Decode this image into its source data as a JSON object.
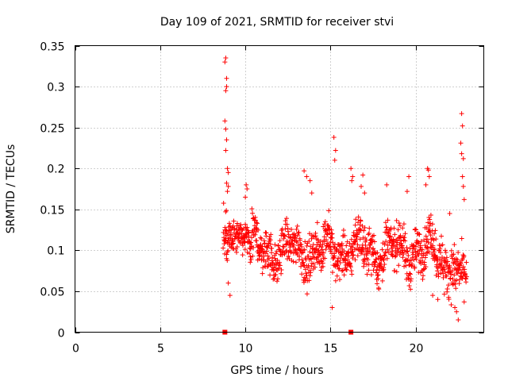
{
  "chart_data": {
    "type": "scatter",
    "title": "Day 109 of 2021, SRMTID for receiver stvi",
    "xlabel": "GPS time / hours",
    "ylabel": "SRMTID / TECUs",
    "xlim": [
      0,
      24
    ],
    "ylim": [
      0,
      0.35
    ],
    "xticks": [
      0,
      5,
      10,
      15,
      20
    ],
    "yticks": [
      0,
      0.05,
      0.1,
      0.15,
      0.2,
      0.25,
      0.3,
      0.35
    ],
    "xtick_labels": [
      "0",
      "5",
      "10",
      "15",
      "20"
    ],
    "ytick_labels": [
      "0",
      "0.05",
      "0.1",
      "0.15",
      "0.2",
      "0.25",
      "0.3",
      "0.35"
    ],
    "grid": true,
    "marker": "+",
    "color": "#ff0000",
    "data_range_hours": [
      8.7,
      23.0
    ],
    "series": [
      {
        "name": "SRMTID",
        "points": [
          [
            8.8,
            0.33
          ],
          [
            8.85,
            0.335
          ],
          [
            8.9,
            0.31
          ],
          [
            8.85,
            0.295
          ],
          [
            8.9,
            0.3
          ],
          [
            8.8,
            0.258
          ],
          [
            8.85,
            0.248
          ],
          [
            8.9,
            0.235
          ],
          [
            8.85,
            0.222
          ],
          [
            8.95,
            0.2
          ],
          [
            9.0,
            0.195
          ],
          [
            8.9,
            0.182
          ],
          [
            9.0,
            0.178
          ],
          [
            8.95,
            0.172
          ],
          [
            8.8,
            0.125
          ],
          [
            8.85,
            0.11
          ],
          [
            8.9,
            0.095
          ],
          [
            9.0,
            0.06
          ],
          [
            9.1,
            0.045
          ],
          [
            10.05,
            0.18
          ],
          [
            10.1,
            0.175
          ],
          [
            10.0,
            0.165
          ],
          [
            13.45,
            0.197
          ],
          [
            13.6,
            0.19
          ],
          [
            13.8,
            0.185
          ],
          [
            13.9,
            0.17
          ],
          [
            15.2,
            0.238
          ],
          [
            15.3,
            0.222
          ],
          [
            15.25,
            0.21
          ],
          [
            15.1,
            0.03
          ],
          [
            16.2,
            0.2
          ],
          [
            16.3,
            0.19
          ],
          [
            16.25,
            0.185
          ],
          [
            16.9,
            0.192
          ],
          [
            16.8,
            0.178
          ],
          [
            17.0,
            0.17
          ],
          [
            18.3,
            0.18
          ],
          [
            19.6,
            0.19
          ],
          [
            19.5,
            0.172
          ],
          [
            20.7,
            0.2
          ],
          [
            20.75,
            0.198
          ],
          [
            20.8,
            0.19
          ],
          [
            20.6,
            0.18
          ],
          [
            21.3,
            0.04
          ],
          [
            21.0,
            0.045
          ],
          [
            22.0,
            0.145
          ],
          [
            22.4,
            0.025
          ],
          [
            22.5,
            0.015
          ],
          [
            22.3,
            0.03
          ],
          [
            22.7,
            0.267
          ],
          [
            22.75,
            0.252
          ],
          [
            22.65,
            0.231
          ],
          [
            22.7,
            0.218
          ],
          [
            22.8,
            0.212
          ],
          [
            22.75,
            0.19
          ],
          [
            22.8,
            0.178
          ],
          [
            22.85,
            0.162
          ]
        ]
      }
    ],
    "x_axis_markers": [
      8.8,
      16.2
    ]
  }
}
